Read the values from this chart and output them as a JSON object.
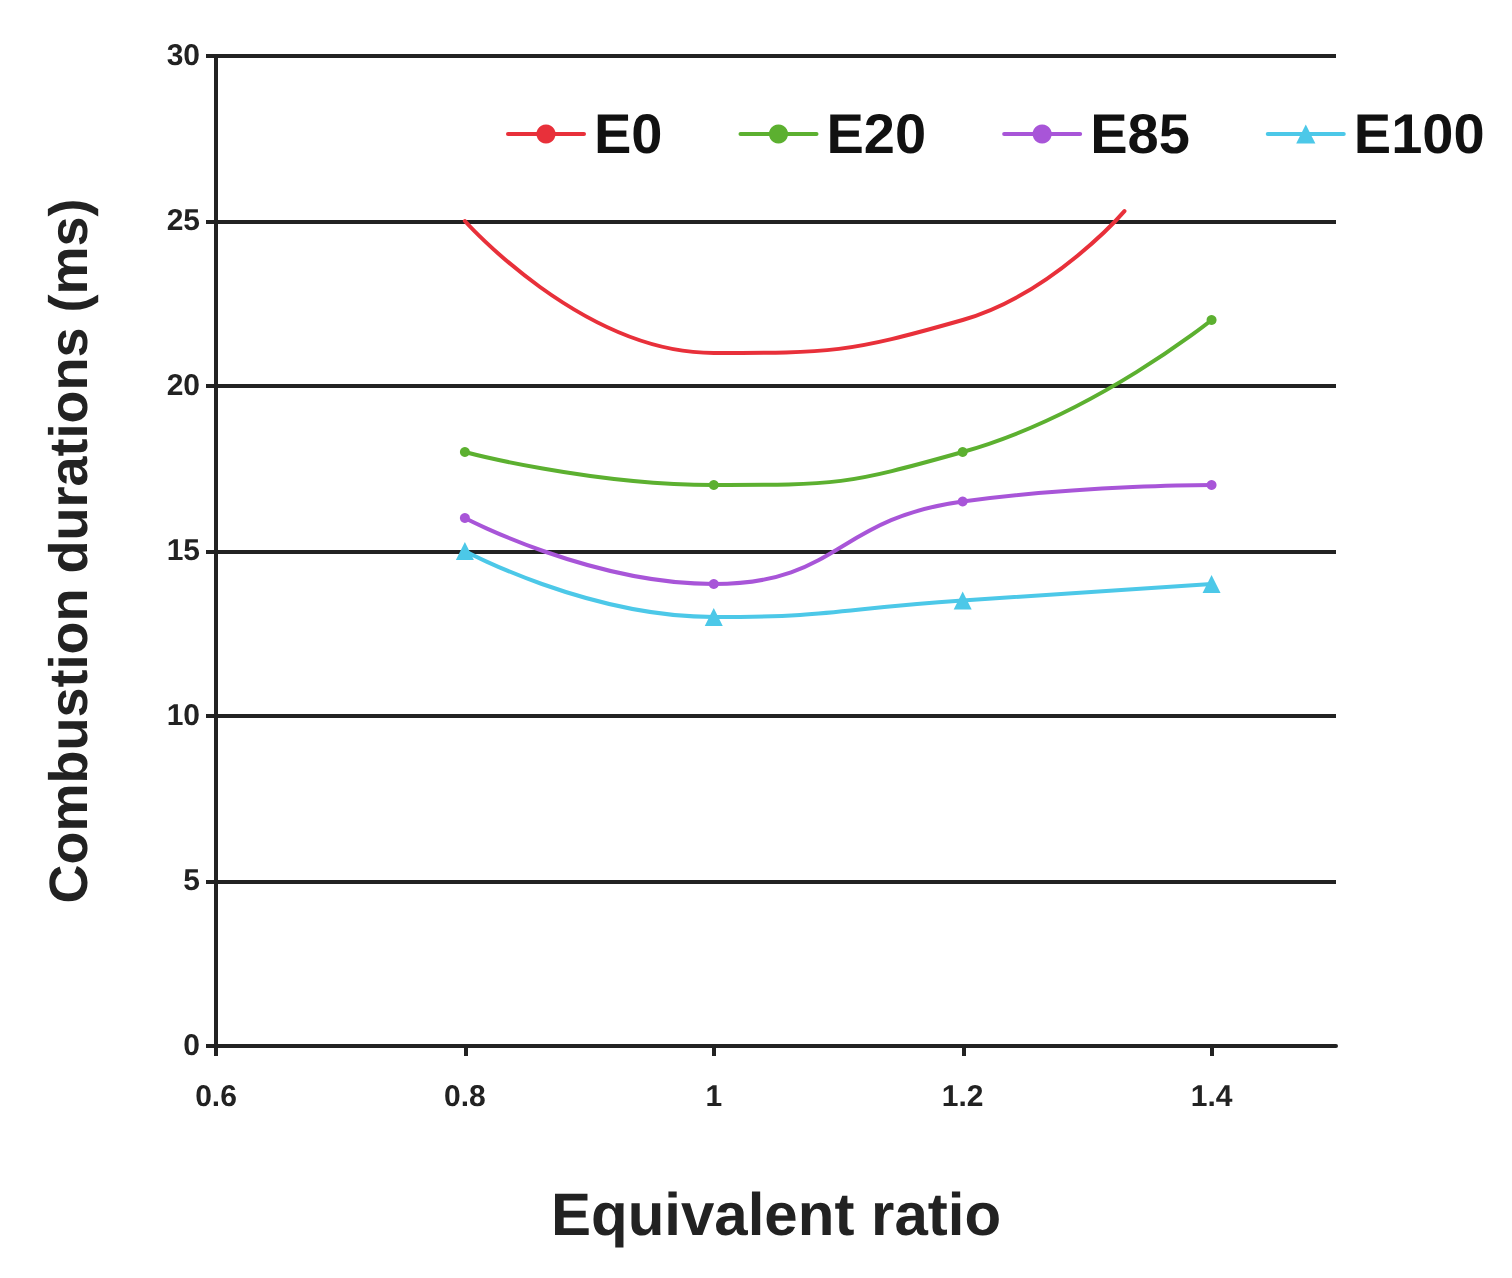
{
  "chart_data": {
    "type": "line",
    "xlabel": "Equivalent ratio",
    "ylabel": "Combustion durations (ms)",
    "x": [
      0.8,
      1.0,
      1.2,
      1.4
    ],
    "series": [
      {
        "name": "E0",
        "color": "#e8303a",
        "marker": "none",
        "x": [
          0.8,
          1.0,
          1.2,
          1.33
        ],
        "values": [
          25,
          21,
          22,
          25.3
        ]
      },
      {
        "name": "E20",
        "color": "#5cb030",
        "marker": "circle",
        "values": [
          18,
          17,
          18,
          22
        ]
      },
      {
        "name": "E85",
        "color": "#a855d8",
        "marker": "circle",
        "values": [
          16,
          14,
          16.5,
          17
        ]
      },
      {
        "name": "E100",
        "color": "#4cc8e8",
        "marker": "triangle",
        "values": [
          15,
          13,
          13.5,
          14
        ]
      }
    ],
    "xlim": [
      0.6,
      1.5
    ],
    "xticks": [
      0.6,
      0.8,
      1,
      1.2,
      1.4
    ],
    "ylim": [
      0,
      30
    ],
    "yticks": [
      0,
      5,
      10,
      15,
      20,
      25,
      30
    ],
    "grid": "y",
    "legend": "top",
    "line_style": "solid"
  }
}
